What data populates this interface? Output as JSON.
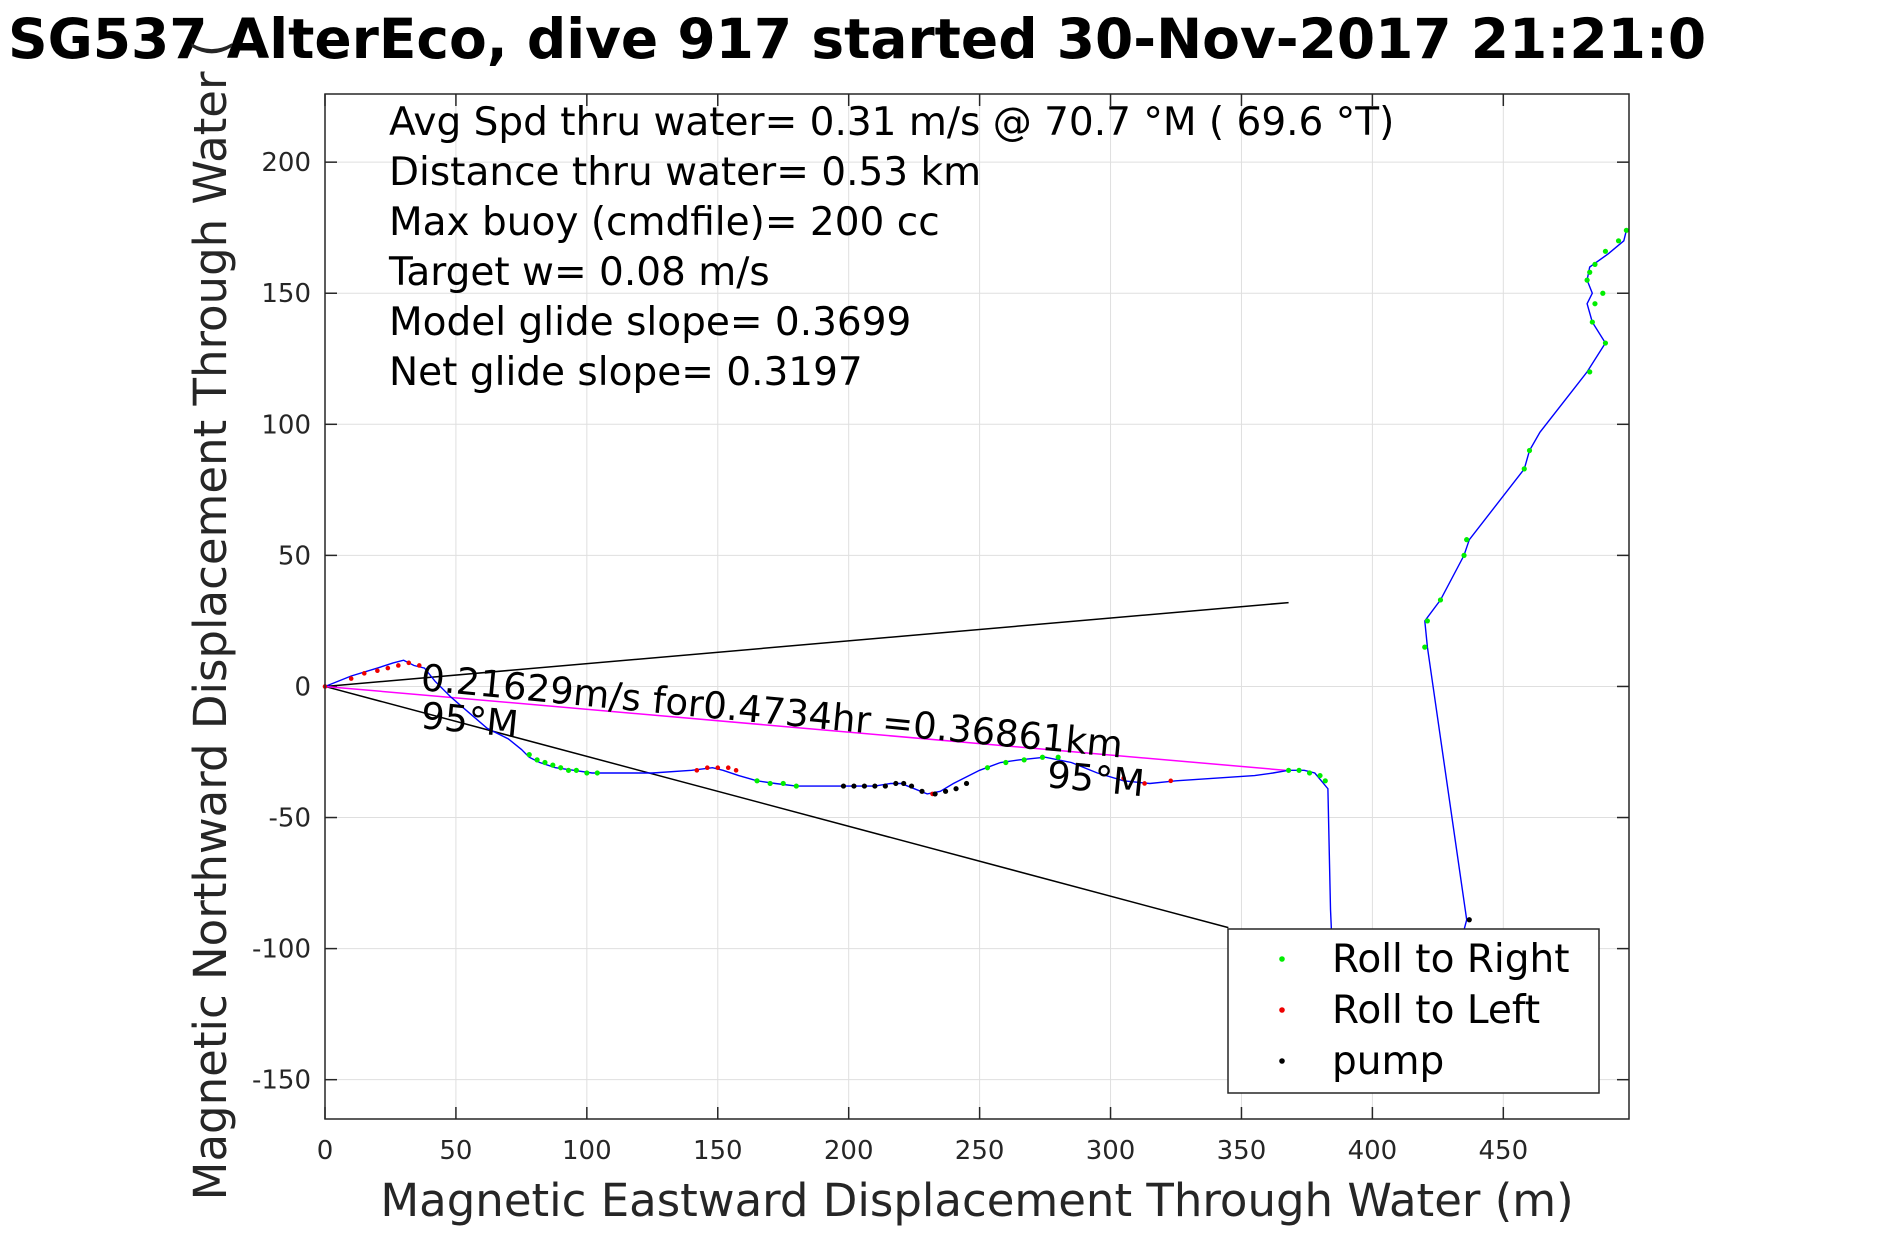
{
  "chart_data": {
    "type": "scatter",
    "title": "SG537 AlterEco, dive 917 started 30-Nov-2017 21:21:0",
    "xlabel": "Magnetic Eastward Displacement Through Water (m)",
    "ylabel": "Magnetic Northward Displacement Through Water (",
    "xlim": [
      0,
      498
    ],
    "ylim": [
      -165,
      226
    ],
    "x_ticks": [
      0,
      50,
      100,
      150,
      200,
      250,
      300,
      350,
      400,
      450
    ],
    "y_ticks": [
      -150,
      -100,
      -50,
      0,
      50,
      100,
      150,
      200
    ],
    "grid": true,
    "stats": [
      "Avg Spd thru water=  0.31 m/s @  70.7 °M ( 69.6 °T)",
      "Distance thru water=  0.53 km",
      "Max buoy (cmdfile)= 200 cc",
      "Target w= 0.08 m/s",
      "Model glide slope= 0.3699",
      "Net glide slope= 0.3197"
    ],
    "annotations": {
      "segment_text": "0.21629m/s for0.4734hr =0.36861km",
      "heading_start": "95°M",
      "heading_end": "95°M"
    },
    "series": [
      {
        "name": "track",
        "color": "#0000ff",
        "x": [
          0,
          10,
          20,
          26,
          30,
          34,
          38,
          42,
          48,
          55,
          62,
          70,
          75,
          78,
          82,
          88,
          95,
          102,
          110,
          125,
          140,
          148,
          152,
          158,
          165,
          172,
          180,
          190,
          200,
          210,
          216,
          220,
          225,
          230,
          235,
          240,
          250,
          258,
          265,
          275,
          285,
          295,
          305,
          315,
          325,
          340,
          355,
          362,
          368,
          374,
          378,
          383,
          384,
          386,
          389,
          395,
          410,
          425,
          436,
          421,
          420,
          426,
          435,
          437,
          458,
          460,
          464,
          482,
          489,
          484,
          482,
          484,
          482,
          483,
          490,
          496,
          497
        ],
        "y": [
          0,
          4,
          7,
          9,
          10,
          8,
          7,
          2,
          -4,
          -10,
          -16,
          -20,
          -24,
          -27,
          -29,
          -31,
          -32,
          -33,
          -33,
          -33,
          -32,
          -31,
          -32,
          -34,
          -36,
          -37,
          -38,
          -38,
          -38,
          -38,
          -37,
          -37,
          -39,
          -41,
          -40,
          -37,
          -32,
          -29,
          -28,
          -27,
          -29,
          -33,
          -36,
          -37,
          -36,
          -35,
          -34,
          -33,
          -32,
          -32,
          -33,
          -39,
          -85,
          -130,
          -148,
          -152,
          -150,
          -130,
          -89,
          15,
          25,
          33,
          50,
          56,
          83,
          90,
          97,
          120,
          131,
          139,
          146,
          150,
          155,
          160,
          165,
          170,
          174
        ]
      },
      {
        "name": "Roll to Right",
        "color": "#00ee00",
        "x": [
          78,
          81,
          84,
          87,
          90,
          93,
          96,
          100,
          104,
          165,
          170,
          175,
          180,
          253,
          260,
          267,
          274,
          280,
          368,
          372,
          376,
          380,
          382,
          384,
          386,
          420,
          421,
          426,
          435,
          436,
          458,
          460,
          483,
          484,
          485,
          488,
          489,
          482,
          483,
          485,
          489,
          494,
          497
        ],
        "y": [
          -26,
          -28,
          -29,
          -30,
          -31,
          -32,
          -32,
          -33,
          -33,
          -36,
          -37,
          -37,
          -38,
          -31,
          -29,
          -28,
          -27,
          -27,
          -32,
          -32,
          -33,
          -34,
          -36,
          -100,
          -120,
          15,
          25,
          33,
          50,
          56,
          83,
          90,
          120,
          139,
          146,
          150,
          131,
          155,
          158,
          161,
          166,
          170,
          174
        ]
      },
      {
        "name": "Roll to Left",
        "color": "#ee0000",
        "x": [
          0,
          10,
          15,
          20,
          24,
          28,
          32,
          36,
          142,
          146,
          150,
          154,
          157,
          228,
          232,
          305,
          313,
          323
        ],
        "y": [
          0,
          3,
          5,
          6,
          7,
          8,
          9,
          8,
          -32,
          -31,
          -31,
          -31,
          -32,
          -40,
          -41,
          -35,
          -37,
          -36
        ],
        "marker_size": "small"
      },
      {
        "name": "pump",
        "color": "#000000",
        "x": [
          198,
          202,
          206,
          210,
          214,
          218,
          221,
          224,
          228,
          233,
          237,
          241,
          245,
          437
        ],
        "y": [
          -38,
          -38,
          -38,
          -38,
          -38,
          -37,
          -37,
          -38,
          -40,
          -41,
          -40,
          -39,
          -37,
          -89
        ]
      }
    ],
    "lines": [
      {
        "name": "upper wedge",
        "color": "#000000",
        "x": [
          0,
          368
        ],
        "y": [
          0,
          32
        ]
      },
      {
        "name": "lower wedge",
        "color": "#000000",
        "x": [
          0,
          345
        ],
        "y": [
          0,
          -92
        ]
      },
      {
        "name": "net displacement",
        "color": "#ff00ff",
        "x": [
          0,
          367
        ],
        "y": [
          0,
          -32
        ]
      }
    ],
    "legend": {
      "position": "bottom-right",
      "entries": [
        {
          "label": "Roll to Right",
          "color": "#00ee00"
        },
        {
          "label": "Roll to Left",
          "color": "#ee0000"
        },
        {
          "label": "pump",
          "color": "#000000"
        }
      ]
    }
  }
}
